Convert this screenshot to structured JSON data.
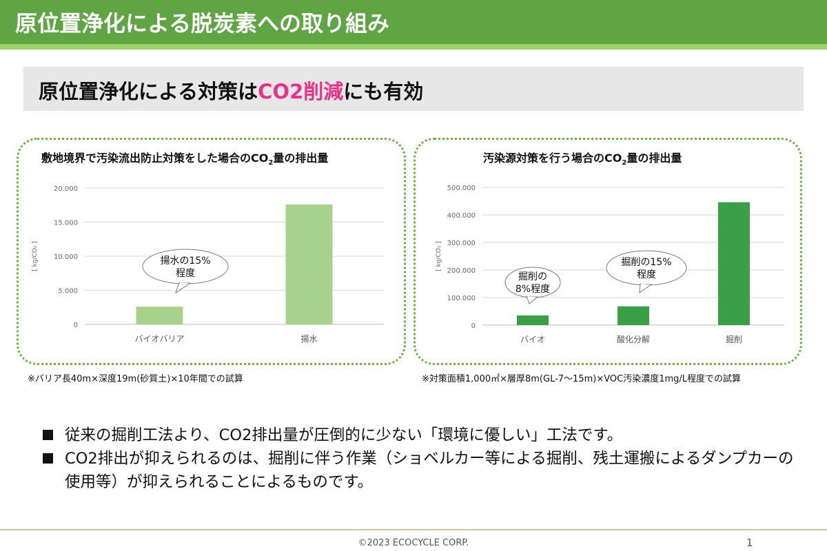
{
  "header": {
    "title": "原位置浄化による脱炭素への取り組み"
  },
  "subtitle": {
    "prefix": "原位置浄化による対策は",
    "highlight": "CO2削減",
    "suffix": "にも有効"
  },
  "colors": {
    "header_green": "#5fa544",
    "accent_pink": "#e5338a",
    "bar_light_green": "#a9d18e",
    "bar_dark_green": "#3b9f48"
  },
  "chart_data": [
    {
      "type": "bar",
      "title_pre": "敷地境界で汚染流出防止対策をした場合のCO",
      "title_sub": "2",
      "title_post": "量の排出量",
      "ylabel": "[ kg/CO₂ ]",
      "categories": [
        "バイオバリア",
        "揚水"
      ],
      "values": [
        2600,
        17600
      ],
      "ylim": [
        0,
        20000
      ],
      "yticks": [
        "0",
        "5.000",
        "10.000",
        "15.000",
        "20.000"
      ],
      "color": "#a9d18e",
      "callouts": [
        {
          "line1": "揚水の15%",
          "line2": "程度"
        }
      ]
    },
    {
      "type": "bar",
      "title_pre": "汚染源対策を行う場合のCO",
      "title_sub": "2",
      "title_post": "量の排出量",
      "ylabel": "[ kg/CO₂ ]",
      "categories": [
        "バイオ",
        "酸化分解",
        "掘削"
      ],
      "values": [
        35000,
        68000,
        446000
      ],
      "ylim": [
        0,
        500000
      ],
      "yticks": [
        "0",
        "100.000",
        "200.000",
        "300.000",
        "400.000",
        "500.000"
      ],
      "color": "#3b9f48",
      "callouts": [
        {
          "line1": "掘削の",
          "line2": "8%程度"
        },
        {
          "line1": "掘削の15%",
          "line2": "程度"
        }
      ]
    }
  ],
  "footnotes": {
    "left": "※バリア長40m×深度19m(砂質土)×10年間での試算",
    "right": "※対策面積1,000㎡×層厚8m(GL-7～15m)×VOC汚染濃度1mg/L程度での試算"
  },
  "bullets": [
    "従来の掘削工法より、CO2排出量が圧倒的に少ない「環境に優しい」工法です。",
    "CO2排出が抑えられるのは、掘削に伴う作業（ショベルカー等による掘削、残土運搬によるダンプカーの使用等）が抑えられることによるものです。"
  ],
  "footer": {
    "copyright": "©2023 ECOCYCLE CORP.",
    "page": "1"
  }
}
